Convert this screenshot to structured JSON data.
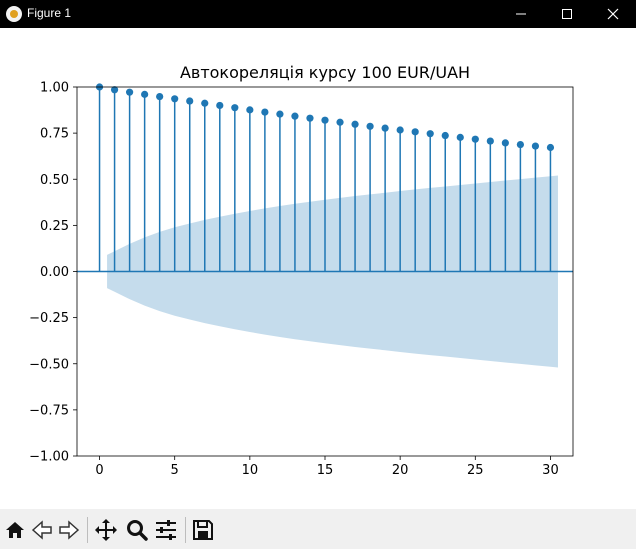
{
  "window": {
    "title": "Figure 1"
  },
  "toolbar": {
    "buttons": [
      "home-icon",
      "back-icon",
      "forward-icon",
      "pan-icon",
      "zoom-icon",
      "configure-subplots-icon",
      "save-icon"
    ]
  },
  "colors": {
    "series": "#1f77b4",
    "band": "#c5dcec",
    "axes": "#000000"
  },
  "chart_data": {
    "type": "stem",
    "title": "Автокореляція курсу 100 EUR/UAH",
    "xlabel": "",
    "ylabel": "",
    "xlim": [
      -1.5,
      31.5
    ],
    "ylim": [
      -1.0,
      1.0
    ],
    "xticks": [
      0,
      5,
      10,
      15,
      20,
      25,
      30
    ],
    "yticks": [
      -1.0,
      -0.75,
      -0.5,
      -0.25,
      0.0,
      0.25,
      0.5,
      0.75,
      1.0
    ],
    "ytick_labels": [
      "−1.00",
      "−0.75",
      "−0.50",
      "−0.25",
      "0.00",
      "0.25",
      "0.50",
      "0.75",
      "1.00"
    ],
    "xtick_labels": [
      "0",
      "5",
      "10",
      "15",
      "20",
      "25",
      "30"
    ],
    "lags": [
      0,
      1,
      2,
      3,
      4,
      5,
      6,
      7,
      8,
      9,
      10,
      11,
      12,
      13,
      14,
      15,
      16,
      17,
      18,
      19,
      20,
      21,
      22,
      23,
      24,
      25,
      26,
      27,
      28,
      29,
      30
    ],
    "acf": [
      1.0,
      0.985,
      0.972,
      0.96,
      0.948,
      0.936,
      0.924,
      0.912,
      0.9,
      0.888,
      0.876,
      0.864,
      0.853,
      0.842,
      0.831,
      0.82,
      0.809,
      0.798,
      0.787,
      0.777,
      0.767,
      0.757,
      0.747,
      0.737,
      0.727,
      0.717,
      0.707,
      0.697,
      0.688,
      0.68,
      0.672
    ],
    "confidence_band": {
      "lags": [
        0.5,
        1,
        2,
        3,
        4,
        5,
        6,
        7,
        8,
        9,
        10,
        11,
        12,
        13,
        14,
        15,
        16,
        17,
        18,
        19,
        20,
        21,
        22,
        23,
        24,
        25,
        26,
        27,
        28,
        29,
        30,
        30.5
      ],
      "upper": [
        0.09,
        0.11,
        0.15,
        0.185,
        0.215,
        0.24,
        0.26,
        0.28,
        0.297,
        0.313,
        0.328,
        0.342,
        0.355,
        0.367,
        0.378,
        0.389,
        0.399,
        0.409,
        0.418,
        0.427,
        0.436,
        0.445,
        0.453,
        0.461,
        0.469,
        0.477,
        0.485,
        0.493,
        0.501,
        0.509,
        0.516,
        0.52
      ]
    },
    "zero_line": true,
    "grid": false
  }
}
